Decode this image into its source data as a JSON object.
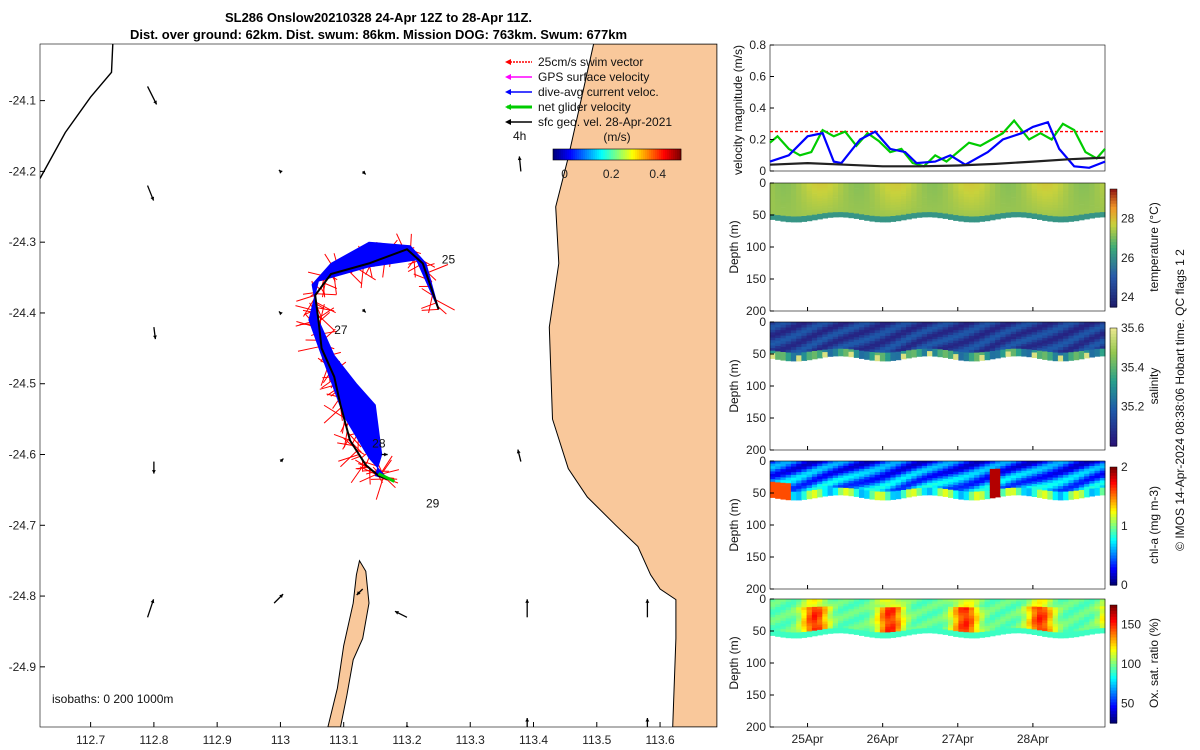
{
  "header": {
    "title_line1": "SL286 Onslow20210328 24-Apr 12Z to 28-Apr 11Z.",
    "title_line2": "Dist. over ground: 62km. Dist. swum: 86km. Mission DOG: 763km. Swum: 677km"
  },
  "colors": {
    "land": "#f9c89b",
    "track": "#000000",
    "swim": "#ff0000",
    "current": "#0000ff",
    "net": "#00cc00",
    "gps": "#ff00ff"
  },
  "chart_data": [
    {
      "type": "map",
      "name": "track-map",
      "xlim": [
        112.62,
        113.69
      ],
      "ylim": [
        -24.985,
        -24.02
      ],
      "x_ticks": [
        112.7,
        112.8,
        112.9,
        113.0,
        113.1,
        113.2,
        113.3,
        113.4,
        113.5,
        113.6
      ],
      "x_tick_labels": [
        "112.7",
        "112.8",
        "112.9",
        "113",
        "113.1",
        "113.2",
        "113.3",
        "113.4",
        "113.5",
        "113.6"
      ],
      "y_ticks": [
        -24.1,
        -24.2,
        -24.3,
        -24.4,
        -24.5,
        -24.6,
        -24.7,
        -24.8,
        -24.9
      ],
      "y_tick_labels": [
        "-24.1",
        "-24.2",
        "-24.3",
        "-24.4",
        "-24.5",
        "-24.6",
        "-24.7",
        "-24.8",
        "-24.9"
      ],
      "legend": [
        "25cm/s swim vector",
        "GPS surface velocity",
        "dive-avg current veloc.",
        "net glider velocity",
        "sfc geo. vel. 28-Apr-2021"
      ],
      "legend_note": "4h",
      "colorbar": {
        "label": "(m/s)",
        "ticks": [
          0,
          0.2,
          0.4
        ],
        "tick_labels": [
          "0",
          "0.2",
          "0.4"
        ],
        "range": [
          -0.05,
          0.5
        ]
      },
      "isobaths_label": "isobaths: 0   200  1000m",
      "glider_track": [
        [
          113.25,
          -24.395
        ],
        [
          113.225,
          -24.33
        ],
        [
          113.2,
          -24.31
        ],
        [
          113.14,
          -24.33
        ],
        [
          113.08,
          -24.345
        ],
        [
          113.055,
          -24.375
        ],
        [
          113.06,
          -24.41
        ],
        [
          113.065,
          -24.45
        ],
        [
          113.085,
          -24.49
        ],
        [
          113.095,
          -24.53
        ],
        [
          113.11,
          -24.58
        ],
        [
          113.135,
          -24.615
        ],
        [
          113.155,
          -24.63
        ],
        [
          113.17,
          -24.635
        ]
      ],
      "current_envelope": [
        [
          113.25,
          -24.395
        ],
        [
          113.23,
          -24.33
        ],
        [
          113.205,
          -24.305
        ],
        [
          113.14,
          -24.3
        ],
        [
          113.08,
          -24.33
        ],
        [
          113.05,
          -24.36
        ],
        [
          113.06,
          -24.41
        ],
        [
          113.085,
          -24.46
        ],
        [
          113.12,
          -24.5
        ],
        [
          113.15,
          -24.53
        ],
        [
          113.16,
          -24.6
        ],
        [
          113.15,
          -24.63
        ],
        [
          113.17,
          -24.635
        ],
        [
          113.14,
          -24.605
        ],
        [
          113.1,
          -24.545
        ],
        [
          113.065,
          -24.46
        ],
        [
          113.045,
          -24.41
        ],
        [
          113.06,
          -24.355
        ],
        [
          113.14,
          -24.335
        ],
        [
          113.215,
          -24.325
        ]
      ],
      "day_labels": [
        {
          "text": "25",
          "lon": 113.255,
          "lat": -24.33
        },
        {
          "text": "27",
          "lon": 113.085,
          "lat": -24.43
        },
        {
          "text": "28",
          "lon": 113.145,
          "lat": -24.59
        },
        {
          "text": "29",
          "lon": 113.23,
          "lat": -24.675
        }
      ],
      "coast_north": [
        [
          112.735,
          -24.02
        ],
        [
          112.733,
          -24.06
        ],
        [
          112.7,
          -24.095
        ],
        [
          112.66,
          -24.145
        ],
        [
          112.62,
          -24.21
        ]
      ],
      "coast_mainland": [
        [
          113.69,
          -24.02
        ],
        [
          113.495,
          -24.02
        ],
        [
          113.455,
          -24.18
        ],
        [
          113.435,
          -24.25
        ],
        [
          113.44,
          -24.33
        ],
        [
          113.425,
          -24.42
        ],
        [
          113.43,
          -24.55
        ],
        [
          113.455,
          -24.62
        ],
        [
          113.485,
          -24.66
        ],
        [
          113.53,
          -24.7
        ],
        [
          113.565,
          -24.73
        ],
        [
          113.585,
          -24.77
        ],
        [
          113.6,
          -24.79
        ],
        [
          113.625,
          -24.805
        ],
        [
          113.625,
          -24.86
        ],
        [
          113.62,
          -24.985
        ],
        [
          113.69,
          -24.985
        ]
      ],
      "island": [
        [
          113.125,
          -24.75
        ],
        [
          113.135,
          -24.765
        ],
        [
          113.14,
          -24.81
        ],
        [
          113.13,
          -24.86
        ],
        [
          113.115,
          -24.89
        ],
        [
          113.105,
          -24.94
        ],
        [
          113.095,
          -24.985
        ],
        [
          113.075,
          -24.985
        ],
        [
          113.09,
          -24.93
        ],
        [
          113.1,
          -24.87
        ],
        [
          113.115,
          -24.81
        ],
        [
          113.12,
          -24.77
        ]
      ],
      "geo_vectors": [
        {
          "lon": 112.79,
          "lat": -24.08,
          "u": 0.03,
          "v": -0.06
        },
        {
          "lon": 112.79,
          "lat": -24.22,
          "u": 0.02,
          "v": -0.05
        },
        {
          "lon": 113.0,
          "lat": -24.2,
          "u": -0.005,
          "v": 0.005
        },
        {
          "lon": 113.13,
          "lat": -24.2,
          "u": 0.01,
          "v": -0.01
        },
        {
          "lon": 113.38,
          "lat": -24.2,
          "u": -0.005,
          "v": 0.05
        },
        {
          "lon": 112.8,
          "lat": -24.42,
          "u": 0.005,
          "v": -0.04
        },
        {
          "lon": 113.0,
          "lat": -24.4,
          "u": -0.005,
          "v": 0.005
        },
        {
          "lon": 113.13,
          "lat": -24.395,
          "u": 0.01,
          "v": -0.01
        },
        {
          "lon": 112.8,
          "lat": -24.61,
          "u": 0.0,
          "v": -0.04
        },
        {
          "lon": 113.0,
          "lat": -24.61,
          "u": 0.01,
          "v": 0.01
        },
        {
          "lon": 113.16,
          "lat": -24.6,
          "u": 0.02,
          "v": 0.0
        },
        {
          "lon": 113.38,
          "lat": -24.61,
          "u": -0.01,
          "v": 0.04
        },
        {
          "lon": 112.79,
          "lat": -24.83,
          "u": 0.02,
          "v": 0.06
        },
        {
          "lon": 112.99,
          "lat": -24.81,
          "u": 0.03,
          "v": 0.03
        },
        {
          "lon": 113.13,
          "lat": -24.79,
          "u": -0.02,
          "v": -0.02
        },
        {
          "lon": 113.2,
          "lat": -24.83,
          "u": -0.04,
          "v": 0.02
        },
        {
          "lon": 113.39,
          "lat": -24.83,
          "u": 0.0,
          "v": 0.06
        },
        {
          "lon": 113.58,
          "lat": -24.83,
          "u": 0.0,
          "v": 0.06
        },
        {
          "lon": 113.2,
          "lat": -24.985,
          "u": -0.005,
          "v": -0.005
        },
        {
          "lon": 113.39,
          "lat": -24.985,
          "u": 0.0,
          "v": 0.03
        },
        {
          "lon": 113.58,
          "lat": -24.985,
          "u": 0.0,
          "v": 0.03
        }
      ]
    },
    {
      "type": "line",
      "name": "velocity-magnitude",
      "ylabel": "velocity magnitude (m/s)",
      "ylim": [
        0,
        0.8
      ],
      "y_ticks": [
        0,
        0.2,
        0.4,
        0.6,
        0.8
      ],
      "y_tick_labels": [
        "0",
        "0.2",
        "0.4",
        "0.6",
        "0.8"
      ],
      "x_days": [
        24.5,
        28.96
      ],
      "series": [
        {
          "name": "swim",
          "color": "#ff0000",
          "dash": true,
          "x": [
            24.5,
            28.96
          ],
          "values": [
            0.25,
            0.25
          ]
        },
        {
          "name": "net glider velocity",
          "color": "#00cc00",
          "x": [
            24.5,
            24.6,
            24.75,
            24.9,
            25.05,
            25.2,
            25.35,
            25.5,
            25.65,
            25.8,
            25.95,
            26.1,
            26.25,
            26.4,
            26.55,
            26.7,
            26.85,
            27.0,
            27.15,
            27.3,
            27.45,
            27.6,
            27.75,
            27.85,
            27.95,
            28.1,
            28.25,
            28.4,
            28.55,
            28.7,
            28.85,
            28.96
          ],
          "values": [
            0.18,
            0.22,
            0.14,
            0.1,
            0.12,
            0.26,
            0.22,
            0.25,
            0.16,
            0.24,
            0.19,
            0.12,
            0.14,
            0.05,
            0.03,
            0.1,
            0.06,
            0.12,
            0.18,
            0.16,
            0.2,
            0.24,
            0.32,
            0.26,
            0.2,
            0.24,
            0.2,
            0.3,
            0.26,
            0.12,
            0.08,
            0.14
          ]
        },
        {
          "name": "dive-avg current veloc.",
          "color": "#0000ff",
          "x": [
            24.5,
            24.75,
            25.0,
            25.2,
            25.35,
            25.45,
            25.7,
            25.9,
            26.1,
            26.3,
            26.45,
            26.7,
            26.9,
            27.1,
            27.4,
            27.6,
            27.85,
            28.0,
            28.2,
            28.35,
            28.55,
            28.75,
            28.96
          ],
          "values": [
            0.06,
            0.1,
            0.22,
            0.24,
            0.06,
            0.05,
            0.2,
            0.25,
            0.14,
            0.12,
            0.05,
            0.06,
            0.1,
            0.04,
            0.12,
            0.2,
            0.24,
            0.28,
            0.31,
            0.14,
            0.03,
            0.02,
            0.06
          ]
        },
        {
          "name": "sfc geo. vel.",
          "color": "#222222",
          "x": [
            24.5,
            25.0,
            25.5,
            26.0,
            26.5,
            27.0,
            27.5,
            28.0,
            28.5,
            28.96
          ],
          "values": [
            0.04,
            0.05,
            0.04,
            0.03,
            0.03,
            0.035,
            0.045,
            0.06,
            0.075,
            0.085
          ]
        }
      ]
    },
    {
      "type": "heatmap",
      "name": "temperature",
      "ylabel": "Depth (m)",
      "ylim": [
        0,
        200
      ],
      "y_ticks": [
        0,
        50,
        100,
        150,
        200
      ],
      "colorbar_label": "temperature (°C)",
      "colorbar_ticks": [
        24,
        26,
        28
      ],
      "crange": [
        23.5,
        29.5
      ],
      "base_value": 27.5,
      "mixed_depth": 57
    },
    {
      "type": "heatmap",
      "name": "salinity",
      "ylabel": "Depth (m)",
      "ylim": [
        0,
        200
      ],
      "y_ticks": [
        0,
        50,
        100,
        150,
        200
      ],
      "colorbar_label": "salinity",
      "colorbar_ticks": [
        35.2,
        35.4,
        35.6
      ],
      "crange": [
        35.0,
        35.6
      ],
      "base_value": 35.1,
      "mixed_depth": 57
    },
    {
      "type": "heatmap",
      "name": "chl-a",
      "ylabel": "Depth (m)",
      "ylim": [
        0,
        200
      ],
      "y_ticks": [
        0,
        50,
        100,
        150,
        200
      ],
      "colorbar_label": "chl-a (mg m-3)",
      "colorbar_ticks": [
        0,
        1,
        2
      ],
      "crange": [
        0,
        2
      ],
      "base_value": 0.3,
      "mixed_depth": 57
    },
    {
      "type": "heatmap",
      "name": "oxygen",
      "ylabel": "Depth (m)",
      "ylim": [
        0,
        200
      ],
      "y_ticks": [
        0,
        50,
        100,
        150,
        200
      ],
      "colorbar_label": "Ox. sat. ratio (%)",
      "colorbar_ticks": [
        50,
        100,
        150
      ],
      "crange": [
        25,
        175
      ],
      "base_value": 112,
      "mixed_depth": 57
    },
    {
      "type": "axis",
      "name": "time-axis",
      "x_ticks": [
        25,
        26,
        27,
        28
      ],
      "x_tick_labels": [
        "25Apr",
        "26Apr",
        "27Apr",
        "28Apr"
      ],
      "xlim": [
        24.5,
        28.96
      ]
    }
  ],
  "side_note": {
    "line1": "© IMOS 14-Apr-2024 08:38:06 Hobart time. QC flags 1  2"
  }
}
